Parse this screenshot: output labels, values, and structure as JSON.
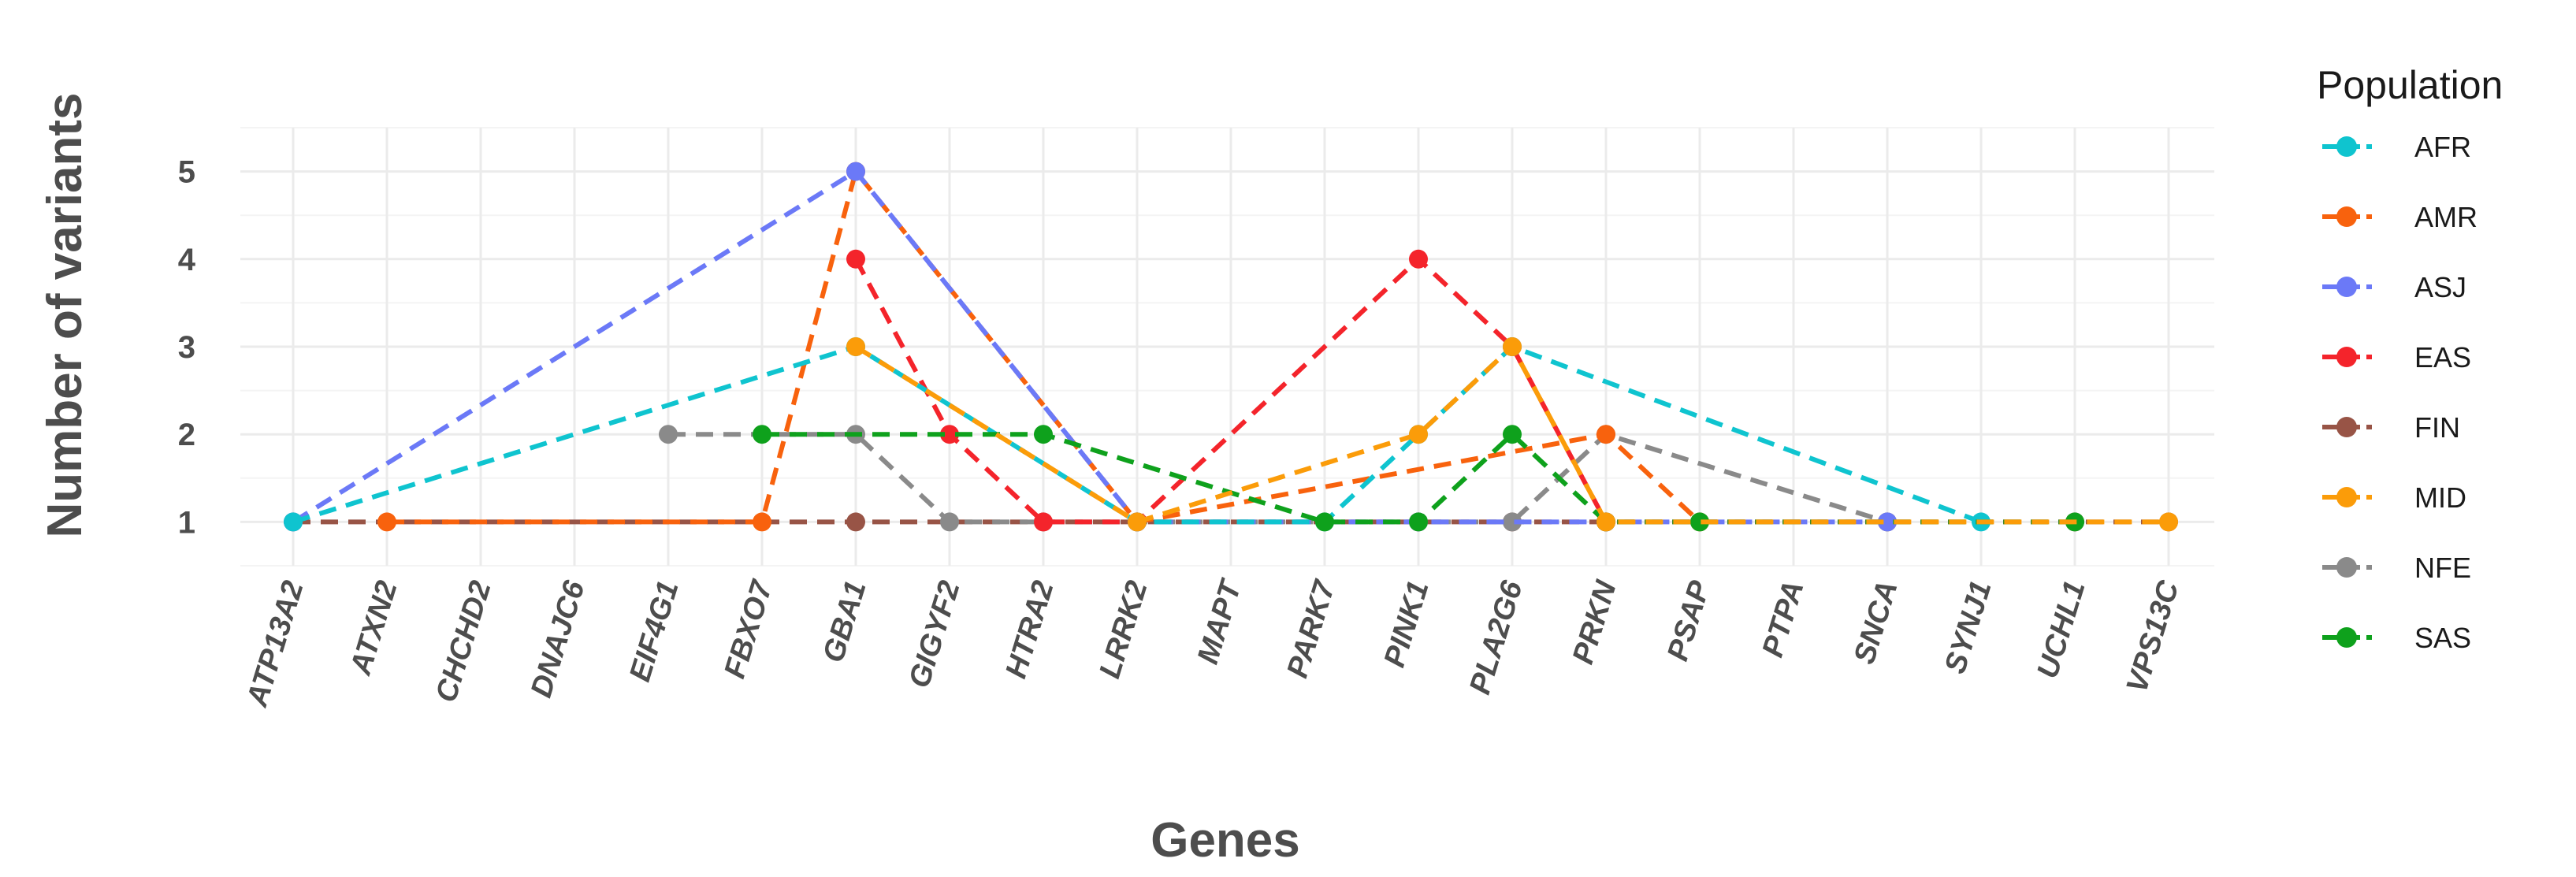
{
  "chart_data": {
    "type": "line",
    "xlabel": "Genes",
    "ylabel": "Number of variants",
    "ylim": [
      0.5,
      5.5
    ],
    "yticks": [
      1,
      2,
      3,
      4,
      5
    ],
    "grid": true,
    "legend_title": "Population",
    "legend_position": "right",
    "categories": [
      "ATP13A2",
      "ATXN2",
      "CHCHD2",
      "DNAJC6",
      "EIF4G1",
      "FBXO7",
      "GBA1",
      "GIGYF2",
      "HTRA2",
      "LRRK2",
      "MAPT",
      "PARK7",
      "PINK1",
      "PLA2G6",
      "PRKN",
      "PSAP",
      "PTPA",
      "SNCA",
      "SYNJ1",
      "UCHL1",
      "VPS13C"
    ],
    "series": [
      {
        "name": "FIN",
        "color": "#985446",
        "points": [
          [
            "ATP13A2",
            1
          ],
          [
            "GBA1",
            1
          ],
          [
            "HTRA2",
            1
          ],
          [
            "LRRK2",
            1
          ],
          [
            "PINK1",
            1
          ],
          [
            "PLA2G6",
            1
          ],
          [
            "PRKN",
            1
          ],
          [
            "SNCA",
            1
          ],
          [
            "UCHL1",
            1
          ],
          [
            "VPS13C",
            1
          ]
        ]
      },
      {
        "name": "NFE",
        "color": "#8a8a8a",
        "points": [
          [
            "EIF4G1",
            2
          ],
          [
            "GBA1",
            2
          ],
          [
            "GIGYF2",
            1
          ],
          [
            "PLA2G6",
            1
          ],
          [
            "PRKN",
            2
          ],
          [
            "SNCA",
            1
          ]
        ]
      },
      {
        "name": "AMR",
        "color": "#f8620d",
        "points": [
          [
            "ATXN2",
            1
          ],
          [
            "FBXO7",
            1
          ],
          [
            "GBA1",
            5
          ],
          [
            "LRRK2",
            1
          ],
          [
            "PRKN",
            2
          ],
          [
            "PSAP",
            1
          ]
        ]
      },
      {
        "name": "ASJ",
        "color": "#6b79f7",
        "points": [
          [
            "ATP13A2",
            1
          ],
          [
            "GBA1",
            5
          ],
          [
            "LRRK2",
            1
          ],
          [
            "PINK1",
            1
          ],
          [
            "PRKN",
            1
          ],
          [
            "SNCA",
            1
          ]
        ]
      },
      {
        "name": "EAS",
        "color": "#f4242b",
        "points": [
          [
            "GBA1",
            4
          ],
          [
            "GIGYF2",
            2
          ],
          [
            "HTRA2",
            1
          ],
          [
            "LRRK2",
            1
          ],
          [
            "PINK1",
            4
          ],
          [
            "PLA2G6",
            3
          ],
          [
            "PRKN",
            1
          ]
        ]
      },
      {
        "name": "AFR",
        "color": "#0fc4cf",
        "points": [
          [
            "ATP13A2",
            1
          ],
          [
            "GBA1",
            3
          ],
          [
            "LRRK2",
            1
          ],
          [
            "PARK7",
            1
          ],
          [
            "PINK1",
            2
          ],
          [
            "PLA2G6",
            3
          ],
          [
            "SYNJ1",
            1
          ]
        ]
      },
      {
        "name": "SAS",
        "color": "#0ea11c",
        "points": [
          [
            "FBXO7",
            2
          ],
          [
            "HTRA2",
            2
          ],
          [
            "PARK7",
            1
          ],
          [
            "PINK1",
            1
          ],
          [
            "PLA2G6",
            2
          ],
          [
            "PRKN",
            1
          ],
          [
            "PSAP",
            1
          ],
          [
            "UCHL1",
            1
          ]
        ]
      },
      {
        "name": "MID",
        "color": "#fb9c09",
        "points": [
          [
            "GBA1",
            3
          ],
          [
            "LRRK2",
            1
          ],
          [
            "PINK1",
            2
          ],
          [
            "PLA2G6",
            3
          ],
          [
            "PRKN",
            1
          ],
          [
            "VPS13C",
            1
          ]
        ]
      }
    ],
    "legend_order": [
      "AFR",
      "AMR",
      "ASJ",
      "EAS",
      "FIN",
      "MID",
      "NFE",
      "SAS"
    ]
  }
}
